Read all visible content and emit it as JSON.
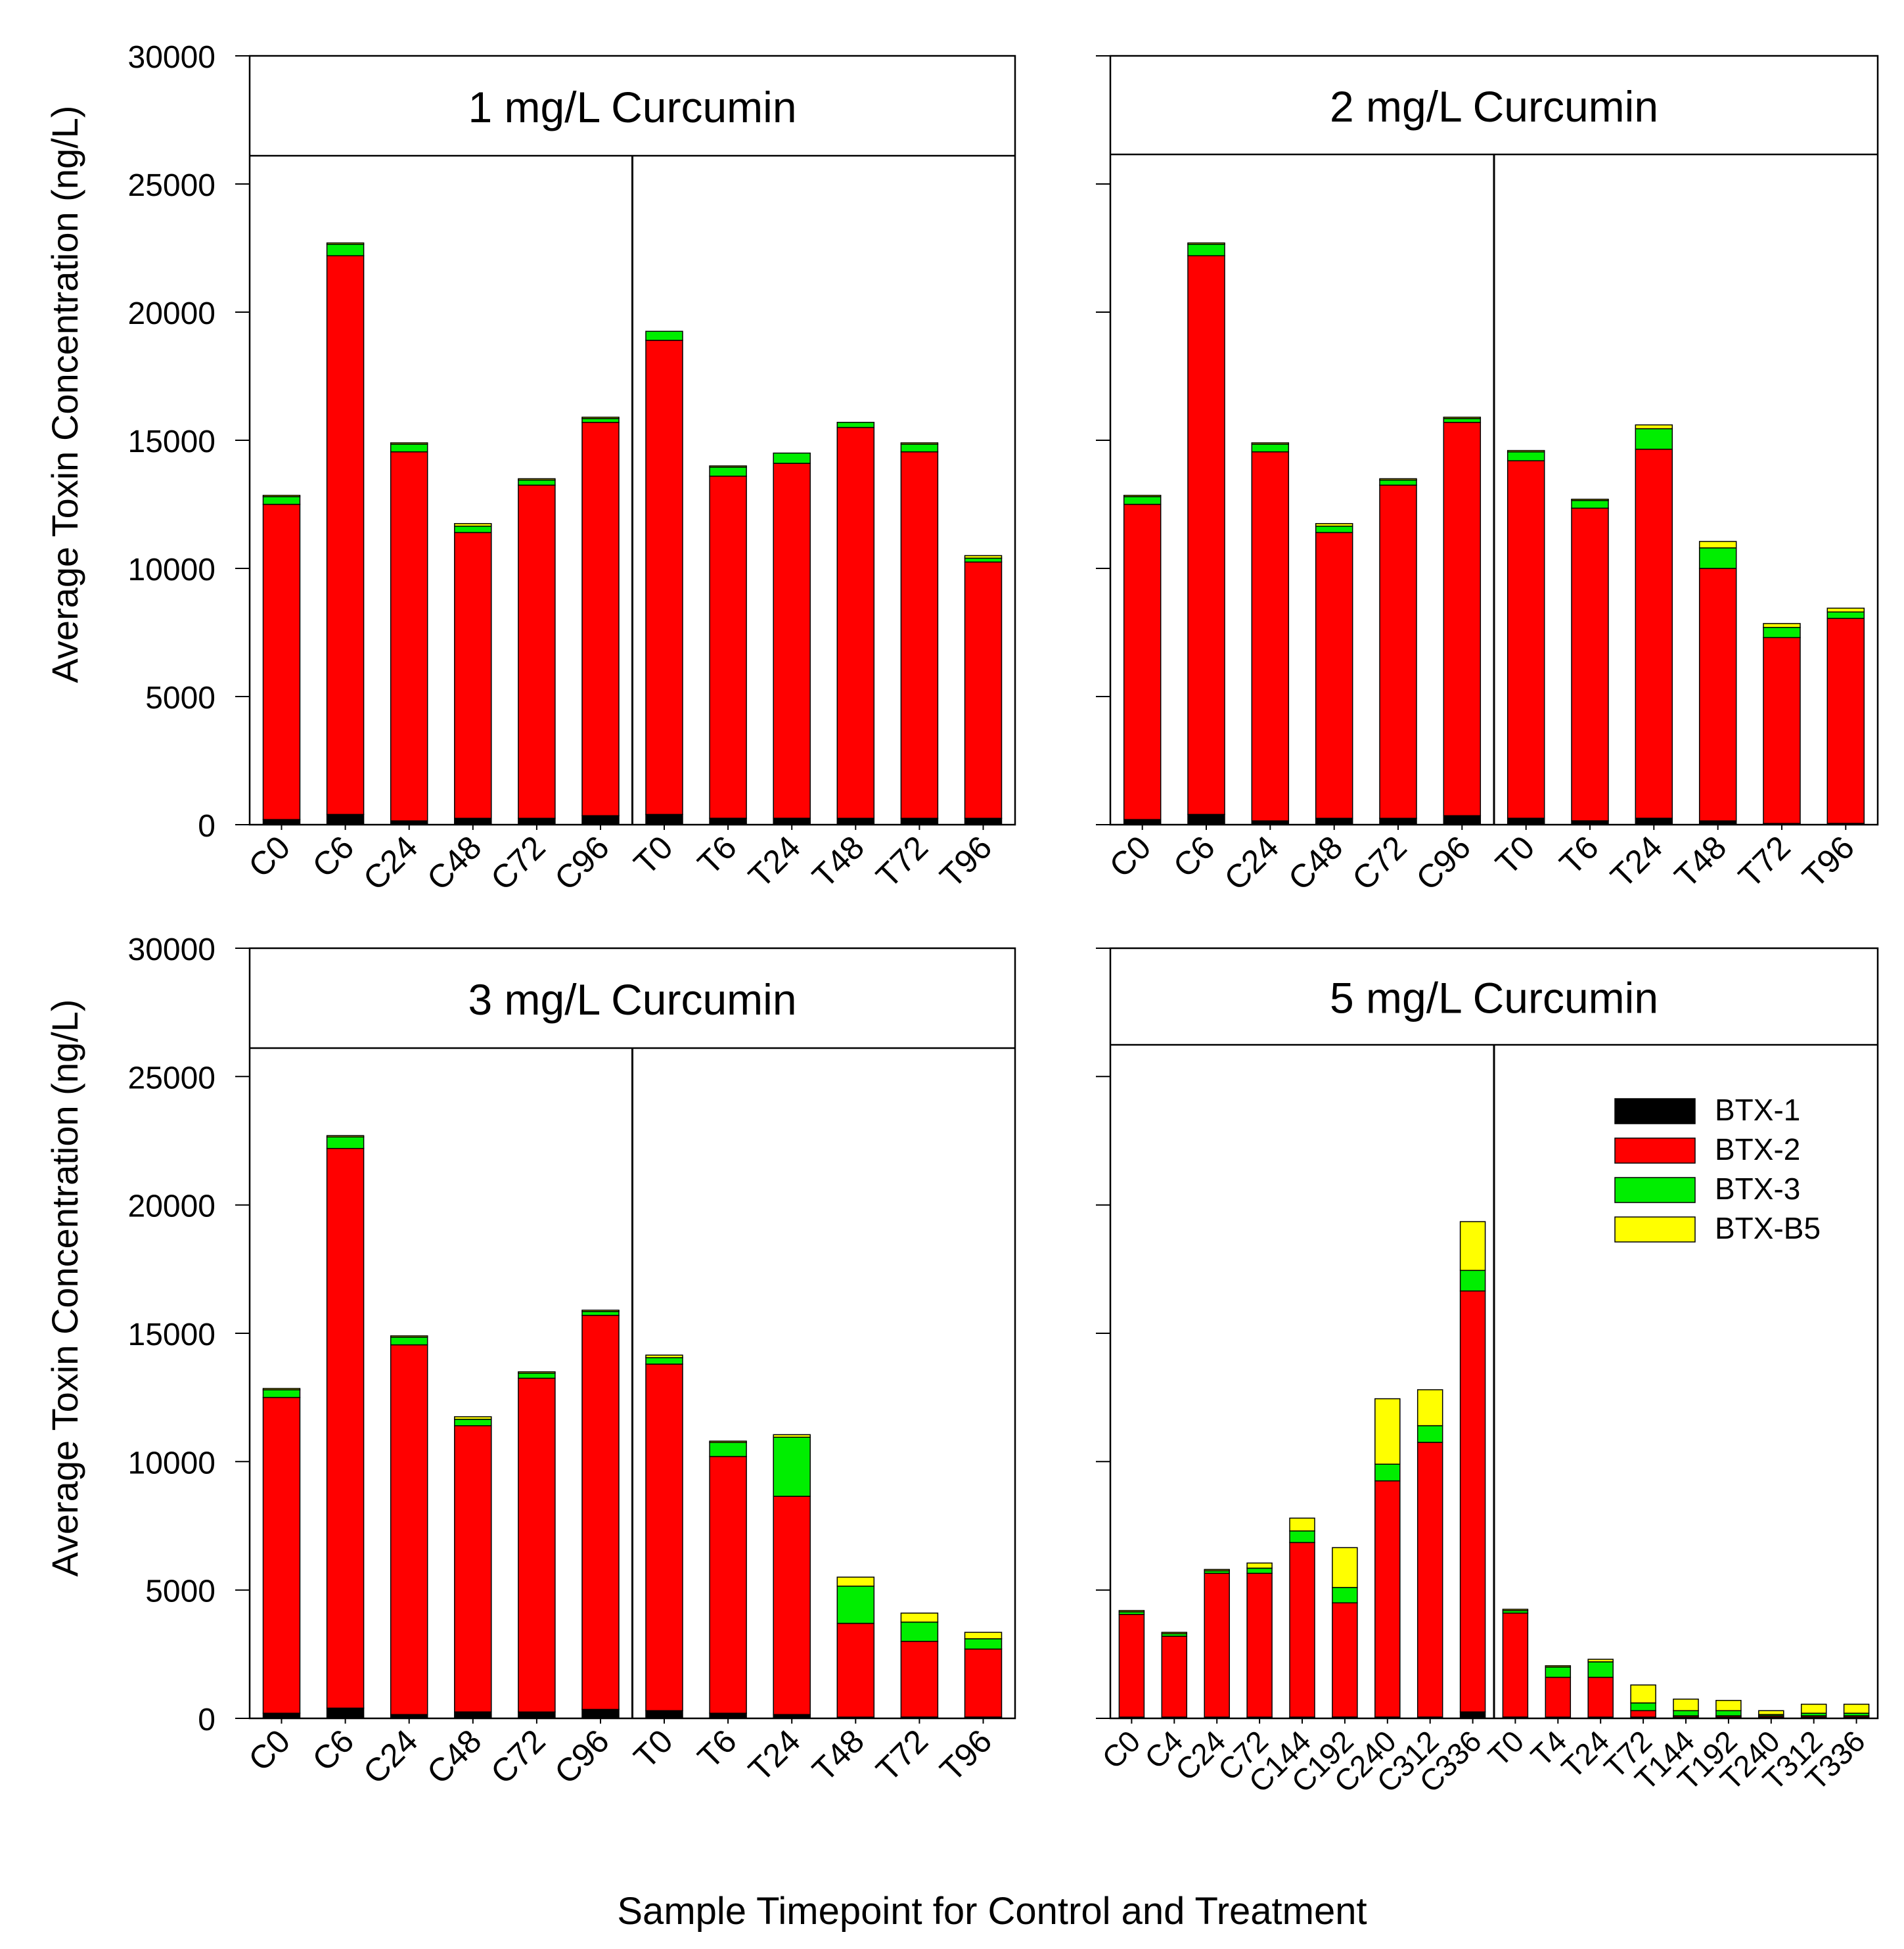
{
  "figure": {
    "xlabel": "Sample Timepoint for Control and Treatment",
    "ylabel": "Average Toxin Concentration (ng/L)"
  },
  "colors": {
    "BTX-1": "#000000",
    "BTX-2": "#ff0000",
    "BTX-3": "#00ee00",
    "BTX-B5": "#ffff00"
  },
  "chart_data": [
    {
      "type": "bar",
      "stacked": true,
      "title": "1 mg/L Curcumin",
      "ylim": [
        0,
        30000
      ],
      "yticks": [
        0,
        5000,
        10000,
        15000,
        20000,
        25000,
        30000
      ],
      "categories": [
        "C0",
        "C6",
        "C24",
        "C48",
        "C72",
        "C96",
        "T0",
        "T6",
        "T24",
        "T48",
        "T72",
        "T96"
      ],
      "series": [
        {
          "name": "BTX-1",
          "values": [
            200,
            400,
            150,
            250,
            250,
            350,
            400,
            250,
            250,
            250,
            250,
            250
          ]
        },
        {
          "name": "BTX-2",
          "values": [
            12300,
            21800,
            14400,
            11150,
            13000,
            15350,
            18500,
            13350,
            13850,
            15250,
            14300,
            10000
          ]
        },
        {
          "name": "BTX-3",
          "values": [
            300,
            450,
            300,
            250,
            200,
            150,
            350,
            350,
            400,
            200,
            300,
            150
          ]
        },
        {
          "name": "BTX-B5",
          "values": [
            50,
            50,
            50,
            100,
            50,
            50,
            0,
            50,
            0,
            0,
            50,
            100
          ]
        }
      ]
    },
    {
      "type": "bar",
      "stacked": true,
      "title": "2 mg/L Curcumin",
      "ylim": [
        0,
        30000
      ],
      "yticks": [
        0,
        5000,
        10000,
        15000,
        20000,
        25000,
        30000
      ],
      "categories": [
        "C0",
        "C6",
        "C24",
        "C48",
        "C72",
        "C96",
        "T0",
        "T6",
        "T24",
        "T48",
        "T72",
        "T96"
      ],
      "series": [
        {
          "name": "BTX-1",
          "values": [
            200,
            400,
            150,
            250,
            250,
            350,
            250,
            150,
            250,
            150,
            50,
            50
          ]
        },
        {
          "name": "BTX-2",
          "values": [
            12300,
            21800,
            14400,
            11150,
            13000,
            15350,
            13950,
            12200,
            14400,
            9850,
            7250,
            8000
          ]
        },
        {
          "name": "BTX-3",
          "values": [
            300,
            450,
            300,
            250,
            200,
            150,
            350,
            300,
            800,
            800,
            400,
            250
          ]
        },
        {
          "name": "BTX-B5",
          "values": [
            50,
            50,
            50,
            100,
            50,
            50,
            50,
            50,
            150,
            250,
            150,
            150
          ]
        }
      ]
    },
    {
      "type": "bar",
      "stacked": true,
      "title": "3 mg/L Curcumin",
      "ylim": [
        0,
        30000
      ],
      "yticks": [
        0,
        5000,
        10000,
        15000,
        20000,
        25000,
        30000
      ],
      "categories": [
        "C0",
        "C6",
        "C24",
        "C48",
        "C72",
        "C96",
        "T0",
        "T6",
        "T24",
        "T48",
        "T72",
        "T96"
      ],
      "series": [
        {
          "name": "BTX-1",
          "values": [
            200,
            400,
            150,
            250,
            250,
            350,
            300,
            200,
            150,
            50,
            50,
            50
          ]
        },
        {
          "name": "BTX-2",
          "values": [
            12300,
            21800,
            14400,
            11150,
            13000,
            15350,
            13500,
            10000,
            8500,
            3650,
            2950,
            2650
          ]
        },
        {
          "name": "BTX-3",
          "values": [
            300,
            450,
            300,
            250,
            200,
            150,
            250,
            550,
            2300,
            1450,
            750,
            400
          ]
        },
        {
          "name": "BTX-B5",
          "values": [
            50,
            50,
            50,
            100,
            50,
            50,
            100,
            50,
            100,
            350,
            350,
            250
          ]
        }
      ]
    },
    {
      "type": "bar",
      "stacked": true,
      "title": "5 mg/L Curcumin",
      "ylim": [
        0,
        30000
      ],
      "yticks": [
        0,
        5000,
        10000,
        15000,
        20000,
        25000,
        30000
      ],
      "categories": [
        "C0",
        "C4",
        "C24",
        "C72",
        "C144",
        "C192",
        "C240",
        "C312",
        "C336",
        "T0",
        "T4",
        "T24",
        "T72",
        "T144",
        "T192",
        "T240",
        "T312",
        "T336"
      ],
      "series": [
        {
          "name": "BTX-1",
          "values": [
            50,
            50,
            50,
            50,
            50,
            50,
            50,
            50,
            250,
            50,
            50,
            50,
            50,
            50,
            50,
            50,
            50,
            50
          ]
        },
        {
          "name": "BTX-2",
          "values": [
            4000,
            3150,
            5600,
            5600,
            6800,
            4450,
            9200,
            10700,
            16400,
            4050,
            1550,
            1550,
            250,
            50,
            50,
            50,
            50,
            50
          ]
        },
        {
          "name": "BTX-3",
          "values": [
            100,
            100,
            100,
            200,
            450,
            600,
            650,
            650,
            800,
            100,
            400,
            600,
            300,
            200,
            200,
            50,
            100,
            100
          ]
        },
        {
          "name": "BTX-B5",
          "values": [
            50,
            50,
            50,
            200,
            500,
            1550,
            2550,
            1400,
            1900,
            50,
            50,
            100,
            700,
            450,
            400,
            150,
            350,
            350
          ]
        }
      ]
    }
  ]
}
